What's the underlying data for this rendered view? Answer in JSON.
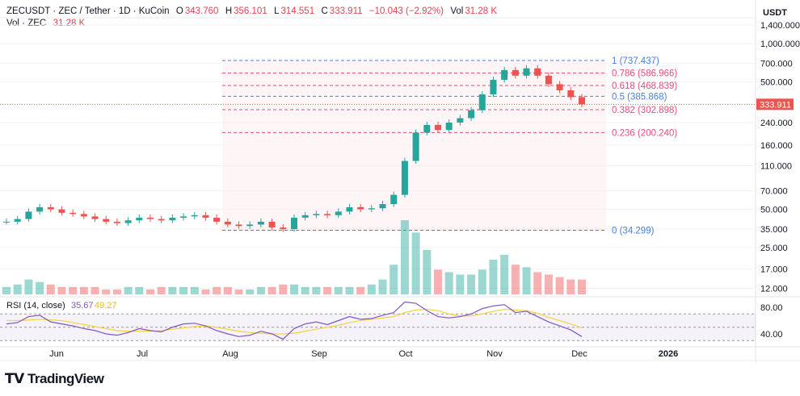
{
  "header": {
    "symbol": "ZECUSDT · ZEC / Tether · 1D · KuCoin",
    "o_label": "O",
    "open": "343.760",
    "h_label": "H",
    "high": "356.101",
    "l_label": "L",
    "low": "314.551",
    "c_label": "C",
    "close": "333.911",
    "change": "−10.043 (−2.92%)",
    "vol_label": "Vol",
    "vol": "31.28 K",
    "vol_line_label": "Vol · ZEC",
    "vol_line_value": "31.28 K"
  },
  "axis_unit": "USDT",
  "price_ticks": [
    "1,400.000",
    "1,000.000",
    "700.000",
    "500.000",
    "240.000",
    "160.000",
    "110.000",
    "70.000",
    "50.000",
    "35.000",
    "25.000",
    "17.000",
    "12.000"
  ],
  "last_price": "333.911",
  "fib_levels": [
    {
      "label": "1 (737.437)",
      "price": 737.437,
      "color": "#4a7fe0"
    },
    {
      "label": "0.786 (586.966)",
      "price": 586.966,
      "color": "#e0507a"
    },
    {
      "label": "0.618 (468.839)",
      "price": 468.839,
      "color": "#e0507a"
    },
    {
      "label": "0.5 (385.868)",
      "price": 385.868,
      "color": "#4a7fe0"
    },
    {
      "label": "0.382 (302.898)",
      "price": 302.898,
      "color": "#e0507a"
    },
    {
      "label": "0.236 (200.240)",
      "price": 200.24,
      "color": "#e0507a"
    },
    {
      "label": "0 (34.299)",
      "price": 34.299,
      "color": "#4a7fe0"
    }
  ],
  "rsi": {
    "label": "RSI (14, close)",
    "value": "35.67",
    "ma": "49.27",
    "ticks": [
      "80.00",
      "40.00"
    ]
  },
  "time_ticks": [
    "Jun",
    "Jul",
    "Aug",
    "Sep",
    "Oct",
    "Nov",
    "Dec",
    "2026"
  ],
  "brand": "TradingView",
  "colors": {
    "up": "#26a69a",
    "down": "#ef5350",
    "rsi": "#7e57c2",
    "rsi_ma": "#f5d547"
  },
  "chart_data": {
    "type": "candlestick",
    "scale": "log",
    "interval": "4D sampled",
    "start": "May 13",
    "end": "Dec 2",
    "closes": [
      40,
      42,
      48,
      52,
      50,
      47,
      46,
      44,
      42,
      40,
      39,
      41,
      43,
      42,
      41,
      43,
      44,
      45,
      43,
      40,
      38,
      37,
      38,
      40,
      36,
      35,
      43,
      45,
      46,
      45,
      48,
      52,
      50,
      51,
      55,
      65,
      120,
      200,
      230,
      210,
      240,
      260,
      300,
      400,
      520,
      620,
      560,
      640,
      560,
      480,
      430,
      380,
      334
    ],
    "volumes": [
      3,
      4,
      6,
      5,
      4,
      3,
      3,
      3,
      3,
      2,
      2,
      3,
      3,
      2,
      3,
      3,
      3,
      3,
      2,
      3,
      3,
      2,
      2,
      3,
      3,
      4,
      4,
      3,
      3,
      3,
      3,
      3,
      3,
      4,
      6,
      12,
      30,
      25,
      18,
      10,
      9,
      8,
      8,
      10,
      14,
      16,
      12,
      11,
      9,
      8,
      7,
      6,
      6
    ],
    "rsi": [
      55,
      57,
      66,
      68,
      58,
      55,
      52,
      48,
      45,
      40,
      38,
      42,
      48,
      45,
      43,
      50,
      55,
      56,
      52,
      45,
      40,
      36,
      38,
      44,
      40,
      32,
      48,
      55,
      58,
      54,
      60,
      66,
      62,
      63,
      68,
      72,
      88,
      86,
      75,
      66,
      64,
      66,
      70,
      78,
      82,
      84,
      72,
      74,
      66,
      58,
      52,
      46,
      36
    ],
    "rsi_ma": [
      60,
      60,
      61,
      62,
      61,
      60,
      57,
      54,
      51,
      48,
      45,
      44,
      44,
      44,
      45,
      47,
      49,
      51,
      52,
      50,
      47,
      44,
      42,
      41,
      40,
      40,
      41,
      44,
      47,
      50,
      53,
      57,
      60,
      62,
      64,
      66,
      72,
      76,
      77,
      75,
      70,
      67,
      67,
      70,
      74,
      77,
      76,
      75,
      71,
      65,
      60,
      55,
      49
    ]
  }
}
